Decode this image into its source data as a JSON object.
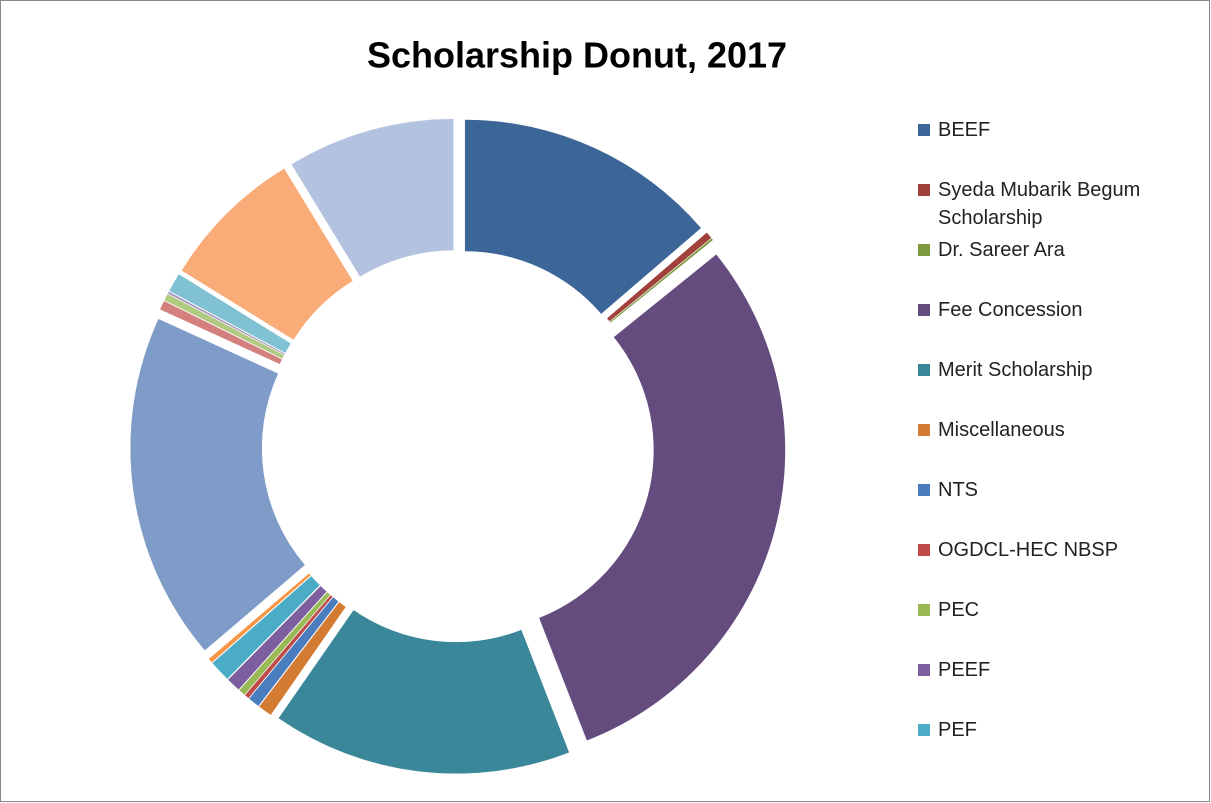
{
  "chart_data": {
    "type": "donut",
    "title": "Scholarship Donut, 2017",
    "categories": [
      "BEEF",
      "Syeda Mubarik Begum Scholarship",
      "Dr. Sareer Ara",
      "Fee Concession",
      "Merit Scholarship",
      "Miscellaneous",
      "NTS",
      "OGDCL-HEC NBSP",
      "PEC",
      "PEEF",
      "PEF",
      null,
      null,
      null,
      null,
      null,
      null,
      null,
      null
    ],
    "values": [
      11,
      0.3,
      0.1,
      24,
      12.5,
      0.6,
      0.5,
      0.2,
      0.3,
      0.6,
      0.9,
      0.2,
      14.5,
      0.4,
      0.3,
      0.1,
      0.8,
      6,
      7
    ],
    "colors": [
      "#3D6698",
      "#A0413C",
      "#7D9A3F",
      "#644C7F",
      "#3A8799",
      "#D37A33",
      "#4A7DBE",
      "#BE4B48",
      "#98B954",
      "#7D5FA0",
      "#4BACC6",
      "#F79646",
      "#7F9CC8",
      "#D3807E",
      "#B0CA82",
      "#A796BF",
      "#80C1D4",
      "#F9AC78",
      "#B3C2DE"
    ]
  }
}
